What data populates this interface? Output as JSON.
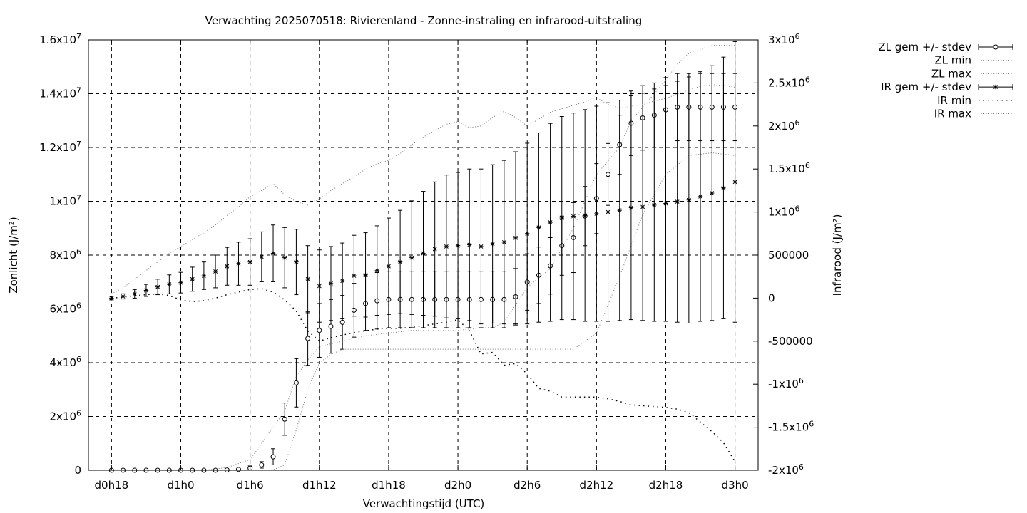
{
  "chart_data": {
    "type": "scatter",
    "title": "Verwachting 2025070518: Rivierenland - Zonne-instraling en infrarood-uitstraling",
    "xlabel": "Verwachtingstijd (UTC)",
    "ylabel_left": "Zonlicht (J/m²)",
    "ylabel_right": "Infrarood (J/m²)",
    "x_tick_labels": [
      "d0h18",
      "d1h0",
      "d1h6",
      "d1h12",
      "d1h18",
      "d2h0",
      "d2h6",
      "d2h12",
      "d2h18",
      "d3h0"
    ],
    "x_ticks_hours": [
      18,
      24,
      30,
      36,
      42,
      48,
      54,
      60,
      66,
      72
    ],
    "x_range_hours": [
      16,
      74
    ],
    "y_left_range": [
      0,
      16000000
    ],
    "y_left_ticks": [
      0,
      2000000,
      4000000,
      6000000,
      8000000,
      10000000,
      12000000,
      14000000,
      16000000
    ],
    "y_left_tick_labels": [
      "0",
      "2x10^6",
      "4x10^6",
      "6x10^6",
      "8x10^6",
      "1x10^7",
      "1.2x10^7",
      "1.4x10^7",
      "1.6x10^7"
    ],
    "y_right_range": [
      -2000000,
      3000000
    ],
    "y_right_ticks": [
      -2000000,
      -1500000,
      -1000000,
      -500000,
      0,
      500000,
      1000000,
      1500000,
      2000000,
      2500000,
      3000000
    ],
    "y_right_tick_labels": [
      "-2x10^6",
      "-1.5x10^6",
      "-1x10^6",
      "-500000",
      "0",
      "500000",
      "1x10^6",
      "1.5x10^6",
      "2x10^6",
      "2.5x10^6",
      "3x10^6"
    ],
    "grid": true,
    "legend_position": "outside-top-right",
    "series": [
      {
        "name": "ZL gem +/- stdev",
        "axis": "left",
        "style": "errorbar-circle",
        "x": [
          18,
          19,
          20,
          21,
          22,
          23,
          24,
          25,
          26,
          27,
          28,
          29,
          30,
          31,
          32,
          33,
          34,
          35,
          36,
          37,
          38,
          39,
          40,
          41,
          42,
          43,
          44,
          45,
          46,
          47,
          48,
          49,
          50,
          51,
          52,
          53,
          54,
          55,
          56,
          57,
          58,
          59,
          60,
          61,
          62,
          63,
          64,
          65,
          66,
          67,
          68,
          69,
          70,
          71,
          72
        ],
        "y": [
          0,
          0,
          0,
          0,
          0,
          0,
          0,
          0,
          0,
          0,
          10000,
          30000,
          80000,
          200000,
          500000,
          1900000,
          3250000,
          4900000,
          5200000,
          5350000,
          5500000,
          5950000,
          6200000,
          6300000,
          6350000,
          6350000,
          6350000,
          6350000,
          6350000,
          6350000,
          6350000,
          6350000,
          6350000,
          6350000,
          6350000,
          6450000,
          7000000,
          7250000,
          7600000,
          8350000,
          8650000,
          9450000,
          10100000,
          11000000,
          12100000,
          12900000,
          13100000,
          13200000,
          13400000,
          13500000,
          13500000,
          13500000,
          13500000,
          13500000,
          13500000
        ],
        "stdev": [
          0,
          0,
          0,
          0,
          0,
          0,
          0,
          0,
          0,
          0,
          20000,
          40000,
          80000,
          120000,
          300000,
          600000,
          900000,
          1000000,
          1000000,
          1000000,
          1000000,
          1000000,
          1000000,
          1050000,
          1050000,
          1050000,
          1050000,
          1050000,
          1050000,
          1050000,
          1050000,
          1050000,
          1050000,
          1050000,
          1050000,
          1050000,
          1050000,
          1050000,
          1050000,
          1100000,
          1300000,
          1100000,
          1300000,
          1150000,
          1100000,
          1200000,
          1200000,
          1200000,
          1200000,
          1250000,
          1250000,
          1250000,
          1250000,
          1250000,
          1250000
        ]
      },
      {
        "name": "ZL min",
        "axis": "left",
        "style": "dotted-fine",
        "x": [
          18,
          20,
          22,
          24,
          26,
          28,
          30,
          31,
          32,
          33,
          34,
          35,
          36,
          37,
          38,
          40,
          42,
          44,
          46,
          48,
          50,
          52,
          54,
          56,
          58,
          60,
          62,
          64,
          66,
          68,
          70,
          72
        ],
        "y": [
          0,
          0,
          0,
          0,
          0,
          0,
          0,
          0,
          20000,
          200000,
          1500000,
          3000000,
          4000000,
          4300000,
          4500000,
          4500000,
          4500000,
          4500000,
          4500000,
          4500000,
          4500000,
          4500000,
          4500000,
          4500000,
          4500000,
          5100000,
          7200000,
          9500000,
          11000000,
          11700000,
          11800000,
          11700000
        ]
      },
      {
        "name": "ZL max",
        "axis": "left",
        "style": "dotted-fine",
        "x": [
          18,
          20,
          22,
          24,
          26,
          28,
          30,
          32,
          33,
          34,
          35,
          36,
          38,
          40,
          42,
          44,
          46,
          48,
          50,
          51,
          52,
          54,
          56,
          58,
          60,
          62,
          63,
          64,
          65,
          66,
          67,
          68,
          70,
          72
        ],
        "y": [
          0,
          0,
          0,
          0,
          0,
          100000,
          400000,
          1600000,
          2200000,
          3500000,
          4100000,
          4600000,
          4800000,
          5000000,
          5100000,
          5200000,
          5200000,
          5200000,
          5300000,
          5300000,
          5500000,
          6800000,
          7500000,
          9000000,
          11000000,
          12000000,
          13000000,
          13500000,
          14000000,
          14500000,
          15100000,
          15500000,
          15800000,
          15800000
        ]
      },
      {
        "name": "IR gem +/- stdev",
        "axis": "right",
        "style": "errorbar-star",
        "x": [
          18,
          19,
          20,
          21,
          22,
          23,
          24,
          25,
          26,
          27,
          28,
          29,
          30,
          31,
          32,
          33,
          34,
          35,
          36,
          37,
          38,
          39,
          40,
          41,
          42,
          43,
          44,
          45,
          46,
          47,
          48,
          49,
          50,
          51,
          52,
          53,
          54,
          55,
          56,
          57,
          58,
          59,
          60,
          61,
          62,
          63,
          64,
          65,
          66,
          67,
          68,
          69,
          70,
          71,
          72
        ],
        "y": [
          0,
          20000,
          50000,
          90000,
          130000,
          160000,
          180000,
          220000,
          260000,
          310000,
          370000,
          400000,
          420000,
          480000,
          520000,
          470000,
          420000,
          220000,
          140000,
          170000,
          200000,
          260000,
          270000,
          320000,
          370000,
          420000,
          470000,
          520000,
          570000,
          600000,
          610000,
          620000,
          600000,
          630000,
          650000,
          700000,
          750000,
          820000,
          880000,
          930000,
          950000,
          960000,
          980000,
          1000000,
          1020000,
          1050000,
          1060000,
          1080000,
          1100000,
          1120000,
          1140000,
          1180000,
          1220000,
          1280000,
          1350000
        ],
        "stdev": [
          20000,
          30000,
          50000,
          70000,
          90000,
          110000,
          120000,
          140000,
          160000,
          190000,
          220000,
          250000,
          270000,
          290000,
          330000,
          350000,
          380000,
          390000,
          420000,
          430000,
          440000,
          470000,
          490000,
          520000,
          560000,
          600000,
          660000,
          720000,
          780000,
          830000,
          850000,
          880000,
          900000,
          920000,
          950000,
          1000000,
          1050000,
          1100000,
          1150000,
          1180000,
          1200000,
          1230000,
          1250000,
          1270000,
          1280000,
          1300000,
          1320000,
          1350000,
          1370000,
          1400000,
          1430000,
          1450000,
          1480000,
          1520000,
          1630000
        ]
      },
      {
        "name": "IR min",
        "axis": "right",
        "style": "dotted-coarse",
        "x": [
          18,
          19,
          20,
          21,
          22,
          23,
          24,
          25,
          26,
          27,
          28,
          29,
          30,
          31,
          32,
          33,
          34,
          35,
          36,
          37,
          38,
          39,
          40,
          41,
          42,
          43,
          44,
          45,
          46,
          47,
          48,
          49,
          50,
          51,
          52,
          53,
          54,
          55,
          56,
          57,
          58,
          59,
          60,
          61,
          62,
          63,
          64,
          65,
          66,
          67,
          68,
          69,
          70,
          71,
          72
        ],
        "y": [
          0,
          10000,
          30000,
          40000,
          50000,
          30000,
          -20000,
          -40000,
          -30000,
          0,
          40000,
          70000,
          100000,
          110000,
          70000,
          -20000,
          -150000,
          -380000,
          -500000,
          -460000,
          -430000,
          -400000,
          -380000,
          -360000,
          -350000,
          -350000,
          -340000,
          -320000,
          -300000,
          -280000,
          -250000,
          -380000,
          -650000,
          -630000,
          -780000,
          -760000,
          -880000,
          -1050000,
          -1080000,
          -1150000,
          -1150000,
          -1150000,
          -1150000,
          -1170000,
          -1200000,
          -1240000,
          -1250000,
          -1260000,
          -1270000,
          -1290000,
          -1330000,
          -1440000,
          -1550000,
          -1680000,
          -1900000
        ]
      },
      {
        "name": "IR max",
        "axis": "right",
        "style": "dotted-fine",
        "x": [
          18,
          19,
          20,
          21,
          22,
          23,
          24,
          25,
          26,
          27,
          28,
          29,
          30,
          31,
          32,
          33,
          34,
          35,
          36,
          37,
          38,
          39,
          40,
          41,
          42,
          43,
          44,
          45,
          46,
          47,
          48,
          49,
          50,
          51,
          52,
          53,
          54,
          55,
          56,
          57,
          58,
          59,
          60,
          61,
          62,
          63,
          64,
          65,
          66,
          67,
          68,
          69,
          70,
          71,
          72
        ],
        "y": [
          50000,
          120000,
          220000,
          320000,
          420000,
          520000,
          600000,
          680000,
          760000,
          850000,
          960000,
          1060000,
          1180000,
          1250000,
          1330000,
          1200000,
          1120000,
          1080000,
          1150000,
          1250000,
          1330000,
          1410000,
          1500000,
          1560000,
          1600000,
          1680000,
          1780000,
          1870000,
          1950000,
          2020000,
          2050000,
          1980000,
          2000000,
          2100000,
          2170000,
          2100000,
          2000000,
          2080000,
          2160000,
          2200000,
          2240000,
          2280000,
          2330000,
          2250000,
          2210000,
          2230000,
          2250000,
          2290000,
          2320000,
          2370000,
          2420000,
          2460000,
          2480000,
          2470000,
          2450000
        ]
      }
    ]
  }
}
